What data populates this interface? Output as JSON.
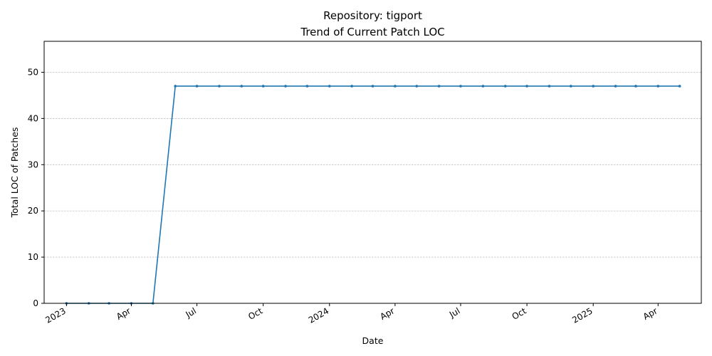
{
  "chart_data": {
    "type": "line",
    "title": "Repository: tigport",
    "subtitle": "Trend of Current Patch LOC",
    "xlabel": "Date",
    "ylabel": "Total LOC of Patches",
    "ylim": [
      0,
      56.7
    ],
    "xlim": [
      "2022-12-01",
      "2025-05-31"
    ],
    "grid": "y-dashed",
    "y_ticks": [
      0,
      10,
      20,
      30,
      40,
      50
    ],
    "x_ticks": [
      {
        "date": "2023-01-01",
        "label": "2023"
      },
      {
        "date": "2023-04-01",
        "label": "Apr"
      },
      {
        "date": "2023-07-01",
        "label": "Jul"
      },
      {
        "date": "2023-10-01",
        "label": "Oct"
      },
      {
        "date": "2024-01-01",
        "label": "2024"
      },
      {
        "date": "2024-04-01",
        "label": "Apr"
      },
      {
        "date": "2024-07-01",
        "label": "Jul"
      },
      {
        "date": "2024-10-01",
        "label": "Oct"
      },
      {
        "date": "2025-01-01",
        "label": "2025"
      },
      {
        "date": "2025-04-01",
        "label": "Apr"
      }
    ],
    "series": [
      {
        "color": "#1f77b4",
        "points": [
          [
            "2023-01-01",
            0
          ],
          [
            "2023-02-01",
            0
          ],
          [
            "2023-03-01",
            0
          ],
          [
            "2023-04-01",
            0
          ],
          [
            "2023-05-01",
            0
          ],
          [
            "2023-06-01",
            47
          ],
          [
            "2023-07-01",
            47
          ],
          [
            "2023-08-01",
            47
          ],
          [
            "2023-09-01",
            47
          ],
          [
            "2023-10-01",
            47
          ],
          [
            "2023-11-01",
            47
          ],
          [
            "2023-12-01",
            47
          ],
          [
            "2024-01-01",
            47
          ],
          [
            "2024-02-01",
            47
          ],
          [
            "2024-03-01",
            47
          ],
          [
            "2024-04-01",
            47
          ],
          [
            "2024-05-01",
            47
          ],
          [
            "2024-06-01",
            47
          ],
          [
            "2024-07-01",
            47
          ],
          [
            "2024-08-01",
            47
          ],
          [
            "2024-09-01",
            47
          ],
          [
            "2024-10-01",
            47
          ],
          [
            "2024-11-01",
            47
          ],
          [
            "2024-12-01",
            47
          ],
          [
            "2025-01-01",
            47
          ],
          [
            "2025-02-01",
            47
          ],
          [
            "2025-03-01",
            47
          ],
          [
            "2025-04-01",
            47
          ],
          [
            "2025-05-01",
            47
          ]
        ]
      }
    ]
  }
}
